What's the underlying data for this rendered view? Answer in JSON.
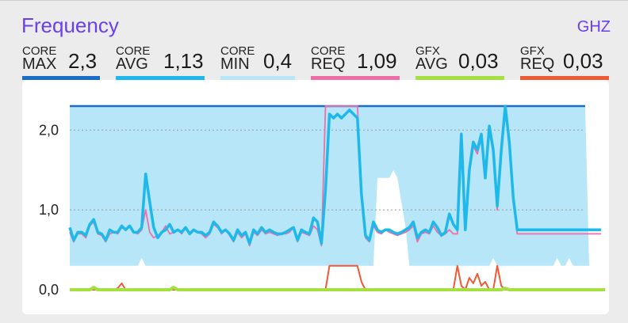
{
  "header": {
    "title": "Frequency",
    "unit": "GHZ"
  },
  "metrics": [
    {
      "line1": "CORE",
      "line2": "MAX",
      "value": "2,3",
      "color": "#1a6ec8"
    },
    {
      "line1": "CORE",
      "line2": "AVG",
      "value": "1,13",
      "color": "#1fb8ea"
    },
    {
      "line1": "CORE",
      "line2": "MIN",
      "value": "0,4",
      "color": "#b7e6f8"
    },
    {
      "line1": "CORE",
      "line2": "REQ",
      "value": "1,09",
      "color": "#f06ea8"
    },
    {
      "line1": "GFX",
      "line2": "AVG",
      "value": "0,03",
      "color": "#a4e040"
    },
    {
      "line1": "GFX",
      "line2": "REQ",
      "value": "0,03",
      "color": "#ee5a36"
    }
  ],
  "chart_data": {
    "type": "line",
    "ylim": [
      0,
      2.3
    ],
    "yticks": [
      "0,0",
      "1,0",
      "2,0"
    ],
    "ytick_values": [
      0,
      1,
      2
    ],
    "grid": true,
    "series": [
      {
        "name": "CORE MAX",
        "color": "#1a6ec8",
        "values": [
          2.3,
          2.3,
          2.3,
          2.3,
          2.3,
          2.3,
          2.3,
          2.3,
          2.3,
          2.3,
          2.3,
          2.3,
          2.3,
          2.3,
          2.3,
          2.3,
          2.3,
          2.3,
          2.3,
          2.3,
          2.3,
          2.3,
          2.3,
          2.3,
          2.3,
          2.3,
          2.3,
          2.3,
          2.3,
          2.3,
          2.3,
          2.3,
          2.3,
          2.3,
          2.3,
          2.3,
          2.3,
          2.3,
          2.3,
          2.3,
          2.3,
          2.3,
          2.3,
          2.3,
          2.3,
          2.3,
          2.3,
          2.3,
          2.3,
          2.3,
          2.3,
          2.3,
          2.3,
          2.3,
          2.3,
          2.3,
          2.3,
          2.3,
          2.3,
          2.3,
          2.3,
          2.3,
          2.3,
          2.3,
          2.3,
          2.3,
          2.3,
          2.3,
          2.3,
          2.3,
          2.3,
          2.3,
          2.3,
          2.3,
          2.3,
          2.3,
          2.3,
          2.3,
          2.3,
          2.3,
          2.3,
          2.3,
          2.3,
          2.3,
          2.3,
          2.3,
          2.3,
          2.3,
          2.3,
          2.3,
          2.3,
          2.3,
          2.3,
          2.3,
          2.3,
          2.3,
          2.3,
          2.3,
          2.3,
          2.3,
          2.3,
          2.3,
          2.3,
          2.3,
          2.3,
          2.3,
          2.3,
          2.3,
          2.3,
          2.3,
          2.3,
          2.3,
          2.3,
          2.3,
          2.3,
          2.3,
          2.3,
          2.3,
          2.3,
          2.3,
          2.3,
          2.3,
          2.3,
          2.3,
          2.3,
          2.3,
          2.3,
          2.3,
          2.3,
          2.3
        ]
      },
      {
        "name": "CORE MIN",
        "color": "#b7e6f8",
        "values": [
          0.3,
          0.3,
          0.3,
          0.3,
          0.3,
          0.3,
          0.3,
          0.3,
          0.3,
          0.3,
          0.3,
          0.3,
          0.3,
          0.3,
          0.3,
          0.3,
          0.3,
          0.3,
          0.4,
          0.3,
          0.3,
          0.3,
          0.3,
          0.3,
          0.3,
          0.3,
          0.3,
          0.3,
          0.3,
          0.3,
          0.3,
          0.3,
          0.3,
          0.3,
          0.3,
          0.3,
          0.3,
          0.3,
          0.3,
          0.3,
          0.3,
          0.3,
          0.3,
          0.3,
          0.3,
          0.3,
          0.3,
          0.3,
          0.3,
          0.3,
          0.3,
          0.3,
          0.3,
          0.3,
          0.3,
          0.3,
          0.3,
          0.3,
          0.3,
          0.3,
          0.3,
          0.3,
          0.3,
          0.3,
          0.3,
          0.3,
          0.3,
          0.3,
          0.3,
          0.3,
          0.3,
          0.3,
          0.3,
          0.3,
          0.3,
          0.3,
          0.3,
          1.4,
          1.4,
          1.4,
          1.4,
          1.5,
          1.4,
          1.1,
          0.8,
          0.3,
          0.3,
          0.3,
          0.3,
          0.3,
          0.3,
          0.3,
          0.3,
          0.3,
          0.3,
          0.3,
          0.3,
          0.3,
          0.3,
          0.3,
          0.3,
          0.3,
          0.3,
          0.3,
          0.3,
          0.3,
          0.4,
          0.3,
          0.3,
          0.3,
          0.3,
          0.3,
          0.3,
          0.3,
          0.3,
          0.3,
          0.3,
          0.3,
          0.3,
          0.3,
          0.3,
          0.3,
          0.4,
          0.3,
          0.3,
          0.4,
          0.3,
          0.3,
          0.3,
          0.3,
          0.3
        ]
      },
      {
        "name": "CORE REQ",
        "color": "#f06ea8",
        "values": [
          0.72,
          0.6,
          0.7,
          0.7,
          0.65,
          0.8,
          0.85,
          0.7,
          0.68,
          0.6,
          0.7,
          0.72,
          0.7,
          0.78,
          0.75,
          0.8,
          0.72,
          0.7,
          0.75,
          1.0,
          0.72,
          0.65,
          0.68,
          0.72,
          0.8,
          0.7,
          0.72,
          0.75,
          0.7,
          0.78,
          0.7,
          0.75,
          0.72,
          0.7,
          0.65,
          0.7,
          0.82,
          0.78,
          0.7,
          0.75,
          0.68,
          0.6,
          0.72,
          0.65,
          0.7,
          0.55,
          0.72,
          0.68,
          0.75,
          0.7,
          0.72,
          0.7,
          0.68,
          0.7,
          0.7,
          0.72,
          0.78,
          0.6,
          0.72,
          0.7,
          0.68,
          0.8,
          0.75,
          0.55,
          2.3,
          2.3,
          2.3,
          2.3,
          2.3,
          2.3,
          2.3,
          2.3,
          2.3,
          1.2,
          0.65,
          0.6,
          0.8,
          0.72,
          0.7,
          0.75,
          0.72,
          0.7,
          0.68,
          0.7,
          0.72,
          0.75,
          0.8,
          0.6,
          0.7,
          0.72,
          0.7,
          0.8,
          0.72,
          0.68,
          0.7,
          0.75,
          0.7,
          0.7,
          1.9,
          0.75,
          1.5,
          1.8,
          1.7,
          1.9,
          1.4,
          2.0,
          1.7,
          1.0,
          1.7,
          2.2,
          1.9,
          1.2,
          0.7,
          0.7,
          0.7,
          0.7,
          0.7,
          0.7,
          0.7,
          0.7,
          0.7,
          0.7,
          0.7,
          0.7,
          0.7,
          0.7,
          0.7,
          0.7,
          0.7,
          0.7,
          0.7,
          0.7,
          0.7,
          0.7
        ]
      },
      {
        "name": "CORE AVG",
        "color": "#1fb8ea",
        "values": [
          0.78,
          0.62,
          0.72,
          0.72,
          0.68,
          0.82,
          0.88,
          0.72,
          0.7,
          0.62,
          0.75,
          0.72,
          0.72,
          0.8,
          0.75,
          0.8,
          0.72,
          0.72,
          0.78,
          1.45,
          1.1,
          0.78,
          0.65,
          0.72,
          0.75,
          0.82,
          0.72,
          0.75,
          0.72,
          0.78,
          0.7,
          0.75,
          0.72,
          0.72,
          0.68,
          0.72,
          0.85,
          0.8,
          0.72,
          0.75,
          0.7,
          0.62,
          0.75,
          0.68,
          0.72,
          0.58,
          0.75,
          0.7,
          0.78,
          0.72,
          0.75,
          0.72,
          0.7,
          0.7,
          0.72,
          0.75,
          0.78,
          0.62,
          0.75,
          0.72,
          0.7,
          0.9,
          0.85,
          0.58,
          1.25,
          2.2,
          2.15,
          2.2,
          2.15,
          2.2,
          2.25,
          2.2,
          2.15,
          1.2,
          0.68,
          0.62,
          0.85,
          0.75,
          0.72,
          0.75,
          0.75,
          0.72,
          0.7,
          0.72,
          0.75,
          0.78,
          0.85,
          0.65,
          0.72,
          0.75,
          0.72,
          0.85,
          0.78,
          0.68,
          0.72,
          0.95,
          0.82,
          0.75,
          1.95,
          0.75,
          1.5,
          1.85,
          1.75,
          1.95,
          1.4,
          2.05,
          1.75,
          1.05,
          1.75,
          2.3,
          1.85,
          1.15,
          0.75,
          0.75,
          0.75,
          0.75,
          0.75,
          0.75,
          0.75,
          0.75,
          0.75,
          0.75,
          0.75,
          0.75,
          0.75,
          0.75,
          0.75,
          0.75,
          0.75,
          0.75,
          0.75,
          0.75,
          0.75,
          0.75
        ]
      },
      {
        "name": "GFX REQ",
        "color": "#ee5a36",
        "values": [
          0,
          0,
          0,
          0,
          0,
          0,
          0,
          0,
          0,
          0,
          0,
          0,
          0.02,
          0.08,
          0,
          0,
          0,
          0,
          0,
          0,
          0,
          0,
          0,
          0,
          0,
          0,
          0,
          0,
          0,
          0,
          0,
          0,
          0,
          0,
          0,
          0,
          0,
          0,
          0,
          0,
          0,
          0,
          0,
          0,
          0,
          0,
          0,
          0,
          0,
          0,
          0,
          0,
          0,
          0,
          0,
          0,
          0,
          0,
          0,
          0,
          0,
          0,
          0,
          0,
          0,
          0.3,
          0.3,
          0.3,
          0.3,
          0.3,
          0.3,
          0.3,
          0.3,
          0.1,
          0,
          0,
          0,
          0,
          0,
          0,
          0,
          0,
          0,
          0,
          0,
          0,
          0,
          0,
          0,
          0,
          0,
          0,
          0,
          0,
          0,
          0,
          0,
          0.3,
          0.05,
          0,
          0.15,
          0.08,
          0.2,
          0.05,
          0.1,
          0,
          0,
          0.3,
          0.05,
          0,
          0,
          0,
          0,
          0,
          0,
          0,
          0,
          0,
          0,
          0,
          0,
          0,
          0,
          0,
          0,
          0,
          0,
          0,
          0,
          0,
          0,
          0
        ]
      },
      {
        "name": "GFX AVG",
        "color": "#a4e040",
        "values": [
          0,
          0,
          0,
          0,
          0,
          0,
          0.03,
          0,
          0,
          0,
          0,
          0,
          0,
          0,
          0,
          0,
          0,
          0,
          0,
          0,
          0,
          0,
          0,
          0,
          0,
          0,
          0.03,
          0,
          0,
          0,
          0,
          0,
          0,
          0,
          0,
          0,
          0,
          0,
          0,
          0,
          0,
          0,
          0,
          0,
          0,
          0,
          0,
          0,
          0,
          0,
          0,
          0,
          0,
          0,
          0,
          0,
          0,
          0,
          0,
          0,
          0,
          0,
          0,
          0,
          0,
          0,
          0,
          0,
          0,
          0,
          0,
          0,
          0,
          0,
          0,
          0,
          0,
          0,
          0,
          0,
          0,
          0,
          0,
          0,
          0,
          0,
          0,
          0,
          0,
          0,
          0,
          0,
          0,
          0,
          0,
          0,
          0,
          0,
          0,
          0,
          0,
          0,
          0,
          0,
          0,
          0,
          0,
          0,
          0,
          0.02,
          0,
          0,
          0,
          0,
          0,
          0,
          0,
          0,
          0,
          0,
          0,
          0,
          0,
          0,
          0,
          0,
          0,
          0,
          0,
          0,
          0,
          0,
          0,
          0,
          0
        ]
      }
    ]
  }
}
